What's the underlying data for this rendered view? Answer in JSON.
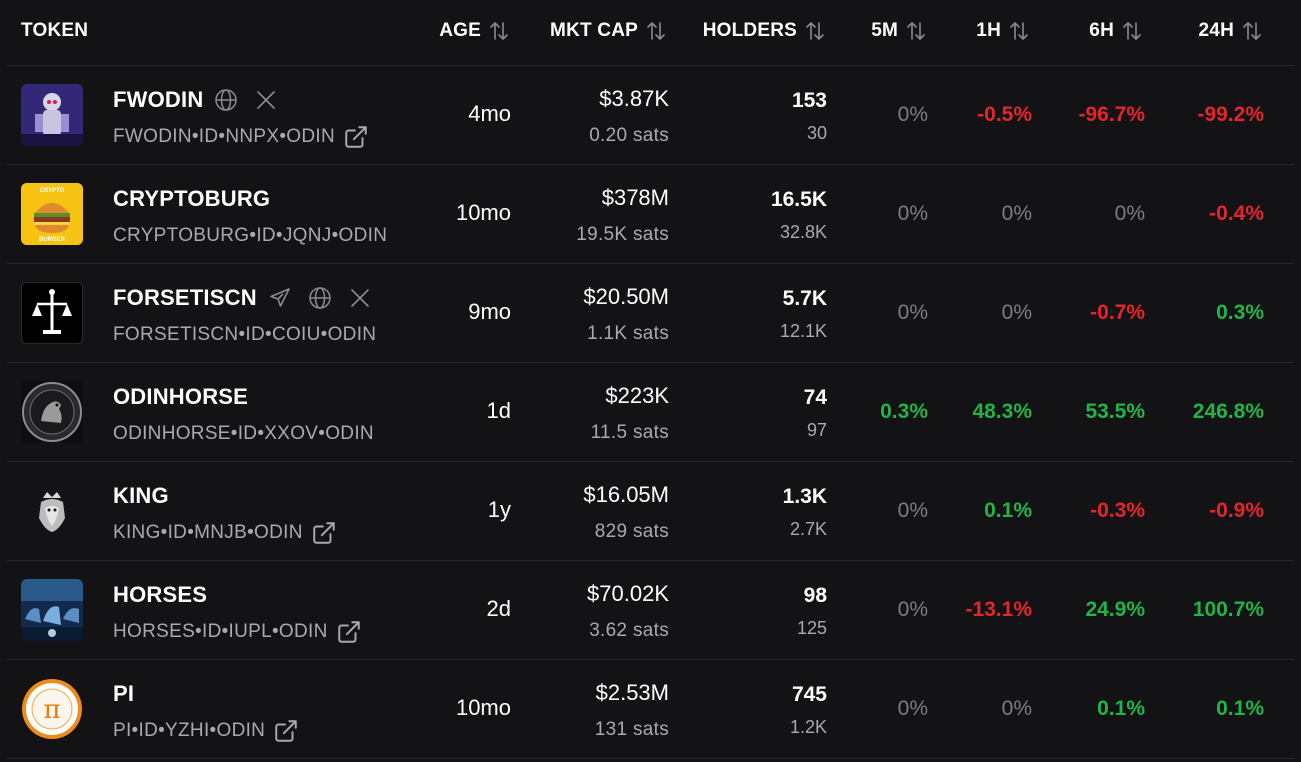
{
  "header": {
    "token": "TOKEN",
    "age": "AGE",
    "mkt_cap": "MKT CAP",
    "holders": "HOLDERS",
    "m5": "5M",
    "h1": "1H",
    "h6": "6H",
    "h24": "24H"
  },
  "colors": {
    "background": "#131316",
    "positive": "#1fb547",
    "negative": "#e5242b",
    "muted": "#a9a9b4",
    "zero": "#7c7c86"
  },
  "rows": [
    {
      "name": "FWODIN",
      "id": "FWODIN•ID•NNPX•ODIN",
      "age": "4mo",
      "mkt_cap": "$3.87K",
      "sats": "0.20 sats",
      "holders": "153",
      "holders_sub": "30",
      "m5": "0%",
      "h1": "-0.5%",
      "h6": "-96.7%",
      "h24": "-99.2%"
    },
    {
      "name": "CRYPTOBURG",
      "id": "CRYPTOBURG•ID•JQNJ•ODIN",
      "age": "10mo",
      "mkt_cap": "$378M",
      "sats": "19.5K sats",
      "holders": "16.5K",
      "holders_sub": "32.8K",
      "m5": "0%",
      "h1": "0%",
      "h6": "0%",
      "h24": "-0.4%",
      "logo_text_top": "CRYPTO",
      "logo_text_bottom": "BURGER"
    },
    {
      "name": "FORSETISCN",
      "id": "FORSETISCN•ID•COIU•ODIN",
      "age": "9mo",
      "mkt_cap": "$20.50M",
      "sats": "1.1K sats",
      "holders": "5.7K",
      "holders_sub": "12.1K",
      "m5": "0%",
      "h1": "0%",
      "h6": "-0.7%",
      "h24": "0.3%"
    },
    {
      "name": "ODINHORSE",
      "id": "ODINHORSE•ID•XXOV•ODIN",
      "age": "1d",
      "mkt_cap": "$223K",
      "sats": "11.5 sats",
      "holders": "74",
      "holders_sub": "97",
      "m5": "0.3%",
      "h1": "48.3%",
      "h6": "53.5%",
      "h24": "246.8%"
    },
    {
      "name": "KING",
      "id": "KING•ID•MNJB•ODIN",
      "age": "1y",
      "mkt_cap": "$16.05M",
      "sats": "829 sats",
      "holders": "1.3K",
      "holders_sub": "2.7K",
      "m5": "0%",
      "h1": "0.1%",
      "h6": "-0.3%",
      "h24": "-0.9%"
    },
    {
      "name": "HORSES",
      "id": "HORSES•ID•IUPL•ODIN",
      "age": "2d",
      "mkt_cap": "$70.02K",
      "sats": "3.62 sats",
      "holders": "98",
      "holders_sub": "125",
      "m5": "0%",
      "h1": "-13.1%",
      "h6": "24.9%",
      "h24": "100.7%"
    },
    {
      "name": "PI",
      "id": "PI•ID•YZHI•ODIN",
      "age": "10mo",
      "mkt_cap": "$2.53M",
      "sats": "131 sats",
      "holders": "745",
      "holders_sub": "1.2K",
      "m5": "0%",
      "h1": "0%",
      "h6": "0.1%",
      "h24": "0.1%",
      "logo_symbol": "π"
    }
  ]
}
